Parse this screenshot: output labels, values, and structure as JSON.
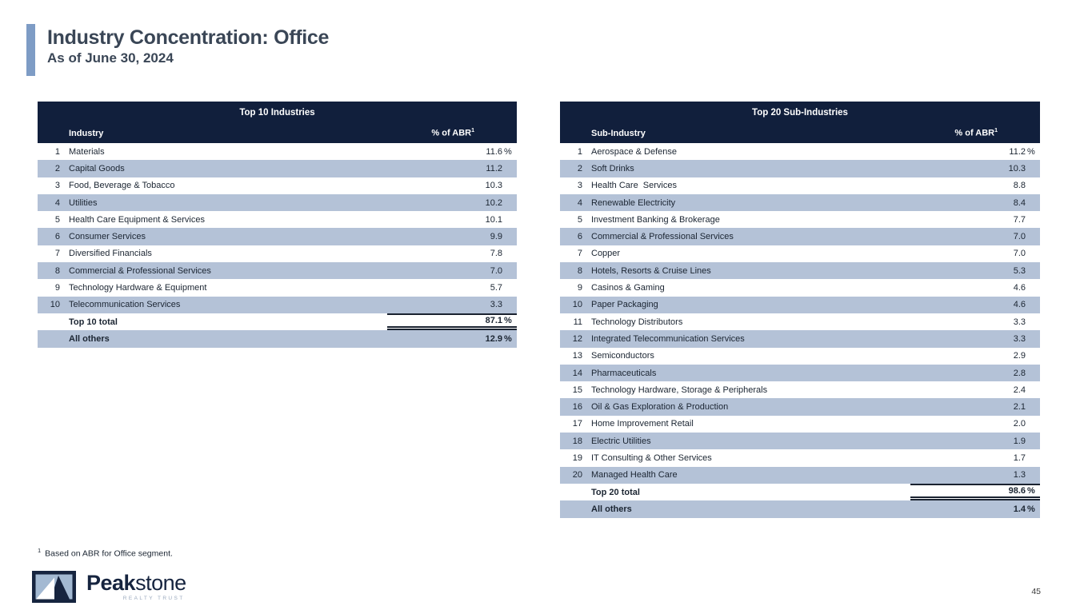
{
  "header": {
    "title": "Industry Concentration: Office",
    "subtitle": "As of June 30, 2024"
  },
  "tables": {
    "left": {
      "title": "Top 10 Industries",
      "columns": {
        "name": "Industry",
        "value": "% of ABR",
        "value_sup": "1"
      },
      "rows": [
        {
          "rank": "1",
          "label": "Materials",
          "value": "11.6 %"
        },
        {
          "rank": "2",
          "label": "Capital Goods",
          "value": "11.2"
        },
        {
          "rank": "3",
          "label": "Food, Beverage & Tobacco",
          "value": "10.3"
        },
        {
          "rank": "4",
          "label": "Utilities",
          "value": "10.2"
        },
        {
          "rank": "5",
          "label": "Health Care Equipment & Services",
          "value": "10.1"
        },
        {
          "rank": "6",
          "label": "Consumer Services",
          "value": "9.9"
        },
        {
          "rank": "7",
          "label": "Diversified Financials",
          "value": "7.8"
        },
        {
          "rank": "8",
          "label": "Commercial & Professional Services",
          "value": "7.0"
        },
        {
          "rank": "9",
          "label": "Technology Hardware & Equipment",
          "value": "5.7"
        },
        {
          "rank": "10",
          "label": "Telecommunication Services",
          "value": "3.3"
        }
      ],
      "total_row": {
        "rank": "",
        "label": "Top 10 total",
        "value": "87.1 %"
      },
      "others_row": {
        "rank": "",
        "label": "All others",
        "value": "12.9 %"
      }
    },
    "right": {
      "title": "Top 20 Sub-Industries",
      "columns": {
        "name": "Sub-Industry",
        "value": "% of ABR",
        "value_sup": "1"
      },
      "rows": [
        {
          "rank": "1",
          "label": "Aerospace & Defense",
          "value": "11.2 %"
        },
        {
          "rank": "2",
          "label": "Soft Drinks",
          "value": "10.3"
        },
        {
          "rank": "3",
          "label": "Health Care  Services",
          "value": "8.8"
        },
        {
          "rank": "4",
          "label": "Renewable Electricity",
          "value": "8.4"
        },
        {
          "rank": "5",
          "label": "Investment Banking & Brokerage",
          "value": "7.7"
        },
        {
          "rank": "6",
          "label": "Commercial & Professional Services",
          "value": "7.0"
        },
        {
          "rank": "7",
          "label": "Copper",
          "value": "7.0"
        },
        {
          "rank": "8",
          "label": "Hotels, Resorts & Cruise Lines",
          "value": "5.3"
        },
        {
          "rank": "9",
          "label": "Casinos & Gaming",
          "value": "4.6"
        },
        {
          "rank": "10",
          "label": "Paper Packaging",
          "value": "4.6"
        },
        {
          "rank": "11",
          "label": "Technology Distributors",
          "value": "3.3"
        },
        {
          "rank": "12",
          "label": "Integrated Telecommunication Services",
          "value": "3.3"
        },
        {
          "rank": "13",
          "label": "Semiconductors",
          "value": "2.9"
        },
        {
          "rank": "14",
          "label": "Pharmaceuticals",
          "value": "2.8"
        },
        {
          "rank": "15",
          "label": "Technology Hardware, Storage & Peripherals",
          "value": "2.4"
        },
        {
          "rank": "16",
          "label": "Oil & Gas Exploration & Production",
          "value": "2.1"
        },
        {
          "rank": "17",
          "label": "Home Improvement Retail",
          "value": "2.0"
        },
        {
          "rank": "18",
          "label": "Electric Utilities",
          "value": "1.9"
        },
        {
          "rank": "19",
          "label": "IT Consulting & Other Services",
          "value": "1.7"
        },
        {
          "rank": "20",
          "label": "Managed Health Care",
          "value": "1.3"
        }
      ],
      "total_row": {
        "rank": "",
        "label": "Top 20 total",
        "value": "98.6 %"
      },
      "others_row": {
        "rank": "",
        "label": "All others",
        "value": "1.4 %"
      }
    }
  },
  "footnote": {
    "sup": "1",
    "text": "Based on ABR for Office segment."
  },
  "logo": {
    "word_bold": "Peak",
    "word_light": "stone",
    "tagline": "REALTY TRUST"
  },
  "page": {
    "number": "45"
  },
  "colors": {
    "header_navy": "#111F3C",
    "row_blue": "#B4C2D7",
    "accent": "#7E9CC5",
    "title_color": "#3A4656",
    "row_text": "#1B2532",
    "line": "#1A2230",
    "logo_navy": "#16243F",
    "logo_sky": "#A3B9D2",
    "tagline": "#9BAABE"
  }
}
